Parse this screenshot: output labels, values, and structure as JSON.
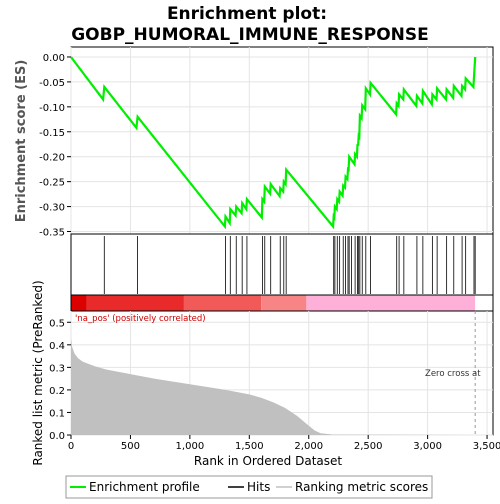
{
  "chart_data": {
    "type": "line",
    "title_line1": "Enrichment plot:",
    "title_line2": "GOBP_HUMORAL_IMMUNE_RESPONSE",
    "top_ylabel": "Enrichment score (ES)",
    "bottom_ylabel": "Ranked list metric (PreRanked)",
    "xlabel": "Rank in Ordered Dataset",
    "xlim": [
      0,
      3550
    ],
    "x_ticks": [
      "0",
      "500",
      "1,000",
      "1,500",
      "2,000",
      "2,500",
      "3,000",
      "3,500"
    ],
    "x_tick_values": [
      0,
      500,
      1000,
      1500,
      2000,
      2500,
      3000,
      3500
    ],
    "es_ylim": [
      -0.355,
      0.02
    ],
    "es_ticks": [
      "0.00",
      "-0.05",
      "-0.10",
      "-0.15",
      "-0.20",
      "-0.25",
      "-0.30",
      "-0.35"
    ],
    "es_tick_values": [
      0,
      -0.05,
      -0.1,
      -0.15,
      -0.2,
      -0.25,
      -0.3,
      -0.35
    ],
    "metric_ylim": [
      0,
      0.55
    ],
    "metric_ticks": [
      "0.0",
      "0.1",
      "0.2",
      "0.3",
      "0.4",
      "0.5"
    ],
    "metric_tick_values": [
      0,
      0.1,
      0.2,
      0.3,
      0.4,
      0.5
    ],
    "pos_annotation": "'na_pos' (positively correlated)",
    "zero_cross_label": "Zero cross at",
    "zero_cross_x": 3400,
    "hits": [
      280,
      560,
      1300,
      1340,
      1390,
      1440,
      1480,
      1610,
      1630,
      1680,
      1760,
      1790,
      1810,
      2210,
      2220,
      2240,
      2260,
      2290,
      2310,
      2330,
      2340,
      2360,
      2390,
      2410,
      2420,
      2430,
      2450,
      2480,
      2520,
      2740,
      2760,
      2800,
      2910,
      2960,
      3040,
      3080,
      3160,
      3220,
      3290,
      3320,
      3390,
      3400
    ],
    "es_curve": [
      [
        0,
        0.0
      ],
      [
        270,
        -0.085
      ],
      [
        280,
        -0.06
      ],
      [
        550,
        -0.142
      ],
      [
        560,
        -0.12
      ],
      [
        1295,
        -0.34
      ],
      [
        1300,
        -0.32
      ],
      [
        1335,
        -0.333
      ],
      [
        1340,
        -0.305
      ],
      [
        1385,
        -0.318
      ],
      [
        1390,
        -0.3
      ],
      [
        1435,
        -0.313
      ],
      [
        1440,
        -0.293
      ],
      [
        1475,
        -0.305
      ],
      [
        1480,
        -0.285
      ],
      [
        1605,
        -0.322
      ],
      [
        1610,
        -0.285
      ],
      [
        1625,
        -0.29
      ],
      [
        1630,
        -0.26
      ],
      [
        1675,
        -0.274
      ],
      [
        1680,
        -0.255
      ],
      [
        1755,
        -0.279
      ],
      [
        1760,
        -0.263
      ],
      [
        1785,
        -0.27
      ],
      [
        1790,
        -0.25
      ],
      [
        1805,
        -0.255
      ],
      [
        1810,
        -0.226
      ],
      [
        2205,
        -0.34
      ],
      [
        2210,
        -0.32
      ],
      [
        2215,
        -0.322
      ],
      [
        2220,
        -0.3
      ],
      [
        2235,
        -0.305
      ],
      [
        2240,
        -0.285
      ],
      [
        2255,
        -0.29
      ],
      [
        2260,
        -0.27
      ],
      [
        2285,
        -0.278
      ],
      [
        2290,
        -0.258
      ],
      [
        2305,
        -0.262
      ],
      [
        2310,
        -0.24
      ],
      [
        2325,
        -0.245
      ],
      [
        2330,
        -0.225
      ],
      [
        2335,
        -0.226
      ],
      [
        2340,
        -0.2
      ],
      [
        2385,
        -0.215
      ],
      [
        2390,
        -0.195
      ],
      [
        2405,
        -0.2
      ],
      [
        2410,
        -0.175
      ],
      [
        2415,
        -0.178
      ],
      [
        2420,
        -0.158
      ],
      [
        2425,
        -0.16
      ],
      [
        2430,
        -0.118
      ],
      [
        2445,
        -0.123
      ],
      [
        2450,
        -0.097
      ],
      [
        2475,
        -0.105
      ],
      [
        2480,
        -0.063
      ],
      [
        2515,
        -0.075
      ],
      [
        2520,
        -0.052
      ],
      [
        2735,
        -0.115
      ],
      [
        2740,
        -0.093
      ],
      [
        2755,
        -0.098
      ],
      [
        2760,
        -0.075
      ],
      [
        2795,
        -0.085
      ],
      [
        2800,
        -0.065
      ],
      [
        2905,
        -0.098
      ],
      [
        2910,
        -0.078
      ],
      [
        2955,
        -0.093
      ],
      [
        2960,
        -0.068
      ],
      [
        3035,
        -0.095
      ],
      [
        3040,
        -0.075
      ],
      [
        3075,
        -0.085
      ],
      [
        3080,
        -0.063
      ],
      [
        3155,
        -0.085
      ],
      [
        3160,
        -0.065
      ],
      [
        3215,
        -0.082
      ],
      [
        3220,
        -0.058
      ],
      [
        3285,
        -0.078
      ],
      [
        3290,
        -0.058
      ],
      [
        3315,
        -0.065
      ],
      [
        3320,
        -0.043
      ],
      [
        3385,
        -0.06
      ],
      [
        3390,
        -0.04
      ],
      [
        3400,
        0.0
      ]
    ],
    "metric_curve": [
      [
        0,
        0.43
      ],
      [
        10,
        0.39
      ],
      [
        30,
        0.36
      ],
      [
        60,
        0.34
      ],
      [
        100,
        0.325
      ],
      [
        200,
        0.305
      ],
      [
        300,
        0.29
      ],
      [
        500,
        0.27
      ],
      [
        700,
        0.25
      ],
      [
        1000,
        0.225
      ],
      [
        1300,
        0.2
      ],
      [
        1500,
        0.18
      ],
      [
        1600,
        0.165
      ],
      [
        1700,
        0.145
      ],
      [
        1800,
        0.12
      ],
      [
        1900,
        0.085
      ],
      [
        1980,
        0.05
      ],
      [
        2050,
        0.02
      ],
      [
        2100,
        0.008
      ],
      [
        2200,
        0.002
      ],
      [
        3400,
        0.0
      ]
    ],
    "legend": {
      "profile": "Enrichment profile",
      "hits": "Hits",
      "metric": "Ranking metric scores"
    },
    "colors": {
      "profile": "#00ee00",
      "hits": "#000000",
      "metric_fill": "#c0c0c0",
      "pos_text": "#cc0000",
      "bar_segments": [
        "#dd0000",
        "#e82a2a",
        "#f25a5a",
        "#f88585",
        "#ffb0d8",
        "#ffffff"
      ]
    }
  }
}
